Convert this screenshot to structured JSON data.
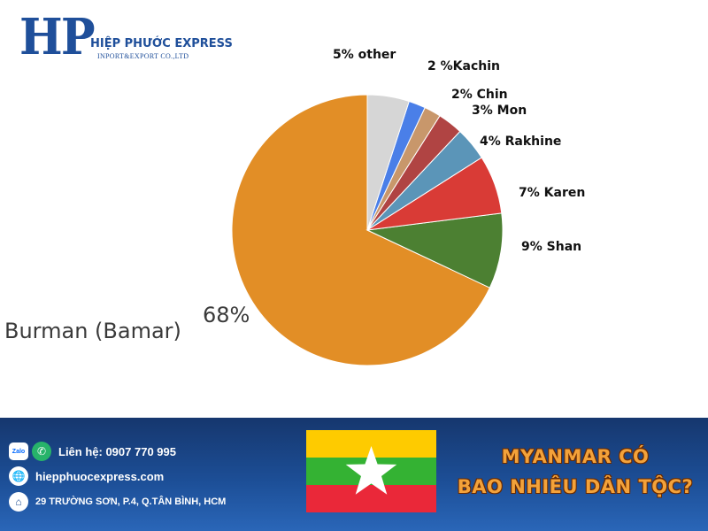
{
  "brand": {
    "mark": "HP",
    "name": "HIỆP PHƯỚC EXPRESS",
    "subtitle": "INPORT&EXPORT CO.,LTD"
  },
  "chart_data": {
    "type": "pie",
    "slices": [
      {
        "name": "Burman (Bamar)",
        "value": 68,
        "label": "68%",
        "color": "#e28e26"
      },
      {
        "name": "Shan",
        "value": 9,
        "label": "9% Shan",
        "color": "#4c8032"
      },
      {
        "name": "Karen",
        "value": 7,
        "label": "7% Karen",
        "color": "#d93b36"
      },
      {
        "name": "Rakhine",
        "value": 4,
        "label": "4% Rakhine",
        "color": "#5b95b8"
      },
      {
        "name": "Mon",
        "value": 3,
        "label": "3% Mon",
        "color": "#b04443"
      },
      {
        "name": "Chin",
        "value": 2,
        "label": "2% Chin",
        "color": "#c8976b"
      },
      {
        "name": "Kachin",
        "value": 2,
        "label": "2 %Kachin",
        "color": "#4a7fe8"
      },
      {
        "name": "other",
        "value": 5,
        "label": "5% other",
        "color": "#d6d6d6"
      }
    ],
    "start": "12 o'clock",
    "direction": "counterclockwise"
  },
  "footer": {
    "zalo_label": "Zalo",
    "contact": "Liên hệ: 0907 770 995",
    "website": "hiepphuocexpress.com",
    "address": "29 TRƯỜNG SƠN, P.4, Q.TÂN BÌNH, HCM",
    "headline_line1": "MYANMAR CÓ",
    "headline_line2": "BAO NHIÊU DÂN TỘC?"
  },
  "flag": {
    "colors": {
      "top": "#fecb00",
      "middle": "#34b233",
      "bottom": "#ea2839",
      "star": "#ffffff"
    }
  }
}
